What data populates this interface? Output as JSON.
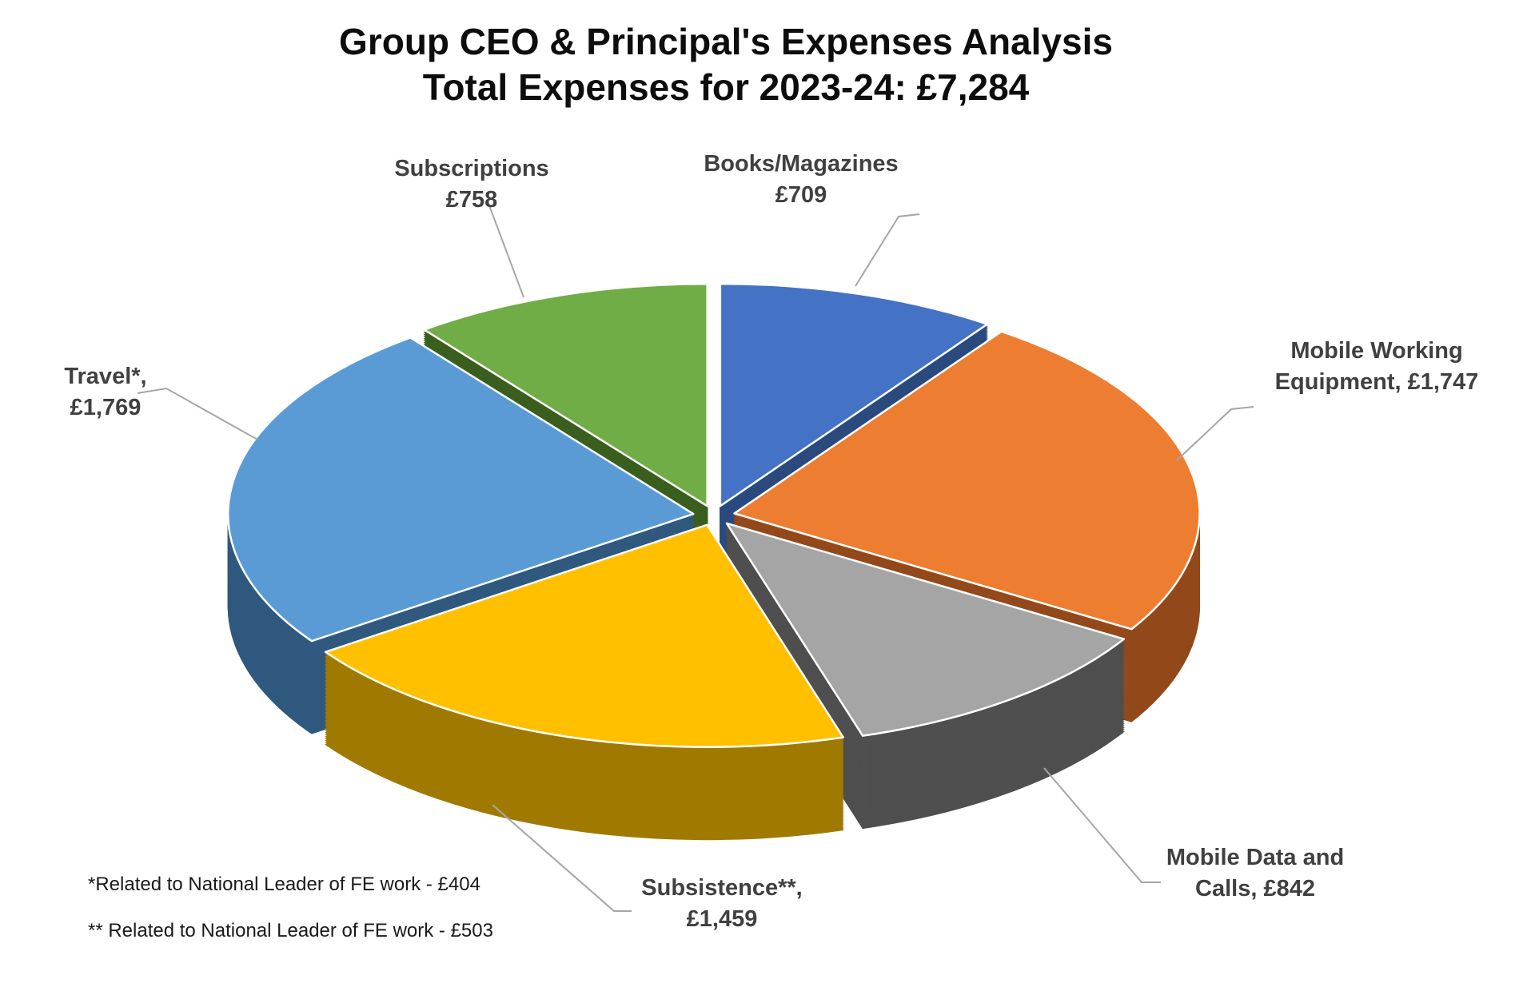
{
  "page": {
    "background": "#ffffff"
  },
  "title": {
    "line1": "Group CEO & Principal's Expenses Analysis",
    "line2": "Total Expenses for 2023-24: £7,284"
  },
  "chart_data": {
    "type": "pie",
    "style": "3d-exploded",
    "title": "Group CEO & Principal's Expenses Analysis",
    "subtitle": "Total Expenses for 2023-24: £7,284",
    "total": 7284,
    "currency": "£",
    "start_angle_deg": 0,
    "direction": "clockwise",
    "legend": "none",
    "data_labels": "outside-with-leader-lines",
    "leader_line_color": "#A6A6A6",
    "label_text_color": "#404040",
    "slices": [
      {
        "label": "Books/Magazines",
        "value": 709,
        "color": "#4472C4",
        "wall_color": "#2B4A7E",
        "label_lines": [
          "Books/Magazines",
          "£709"
        ]
      },
      {
        "label": "Mobile Working Equipment",
        "value": 1747,
        "color": "#ED7D31",
        "wall_color": "#93491B",
        "label_lines": [
          "Mobile Working",
          "Equipment, £1,747"
        ]
      },
      {
        "label": "Mobile Data and Calls",
        "value": 842,
        "color": "#A5A5A5",
        "wall_color": "#4F4F4F",
        "label_lines": [
          "Mobile Data and",
          "Calls, £842"
        ]
      },
      {
        "label": "Subsistence",
        "value": 1459,
        "color": "#FFC000",
        "wall_color": "#A07A00",
        "label_lines": [
          "Subsistence**,",
          "£1,459"
        ]
      },
      {
        "label": "Travel",
        "value": 1769,
        "color": "#5B9BD5",
        "wall_color": "#30597F",
        "label_lines": [
          "Travel*,",
          "£1,769"
        ]
      },
      {
        "label": "Subscriptions",
        "value": 758,
        "color": "#70AD47",
        "wall_color": "#3A5E1E",
        "label_lines": [
          "Subscriptions",
          "£758"
        ]
      }
    ]
  },
  "footnotes": [
    "*Related to National Leader of FE work - £404",
    "** Related to National Leader of FE work - £503"
  ]
}
